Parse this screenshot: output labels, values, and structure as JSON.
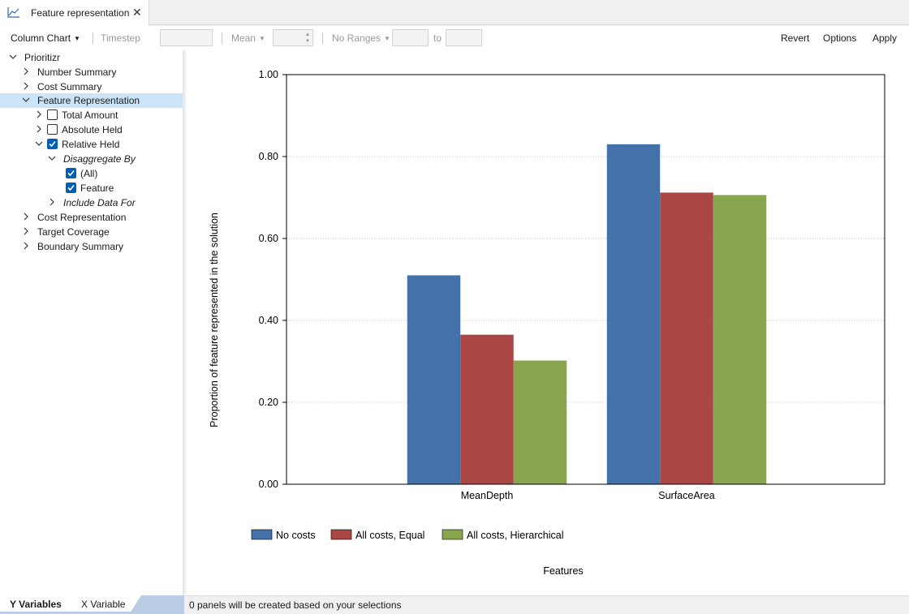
{
  "tab": {
    "title": "Feature representation",
    "icon": "line-chart-icon",
    "close_icon": "close-icon"
  },
  "toolbar": {
    "chart_type": "Column Chart",
    "timestep_label": "Timestep",
    "aggregate": "Mean",
    "ranges": "No Ranges",
    "to_label": "to",
    "revert": "Revert",
    "options": "Options",
    "apply": "Apply"
  },
  "tree": {
    "root": "Prioritizr",
    "number_summary": "Number Summary",
    "cost_summary": "Cost Summary",
    "feature_representation": "Feature Representation",
    "total_amount": "Total Amount",
    "absolute_held": "Absolute Held",
    "relative_held": "Relative Held",
    "disaggregate_by": "Disaggregate By",
    "all": "(All)",
    "feature": "Feature",
    "include_data_for": "Include Data For",
    "cost_representation": "Cost Representation",
    "target_coverage": "Target Coverage",
    "boundary_summary": "Boundary Summary"
  },
  "checks": {
    "total_amount": false,
    "absolute_held": false,
    "relative_held": true,
    "all": true,
    "feature": true
  },
  "bottom_tabs": {
    "y_variables": "Y Variables",
    "x_variable": "X Variable"
  },
  "status": {
    "text": "0 panels will be created based on your selections"
  },
  "colors": {
    "selected_row": "#cce4f7",
    "checkbox": "#005fb8",
    "no_costs": "#4472a8",
    "equal": "#aa4643",
    "hierarchical": "#89a54e"
  },
  "chart_data": {
    "type": "bar",
    "categories": [
      "MeanDepth",
      "SurfaceArea"
    ],
    "series": [
      {
        "name": "No costs",
        "color": "#4472a8",
        "values": [
          0.51,
          0.83
        ]
      },
      {
        "name": "All costs, Equal",
        "color": "#aa4643",
        "values": [
          0.365,
          0.712
        ]
      },
      {
        "name": "All costs, Hierarchical",
        "color": "#89a54e",
        "values": [
          0.302,
          0.706
        ]
      }
    ],
    "ylim": [
      0,
      1
    ],
    "yticks": [
      "0.00",
      "0.20",
      "0.40",
      "0.60",
      "0.80",
      "1.00"
    ],
    "ylabel": "Proportion of feature represented in the solution",
    "xlabel": "Features",
    "legend_position": "bottom-left",
    "grid": "horizontal-dotted"
  }
}
